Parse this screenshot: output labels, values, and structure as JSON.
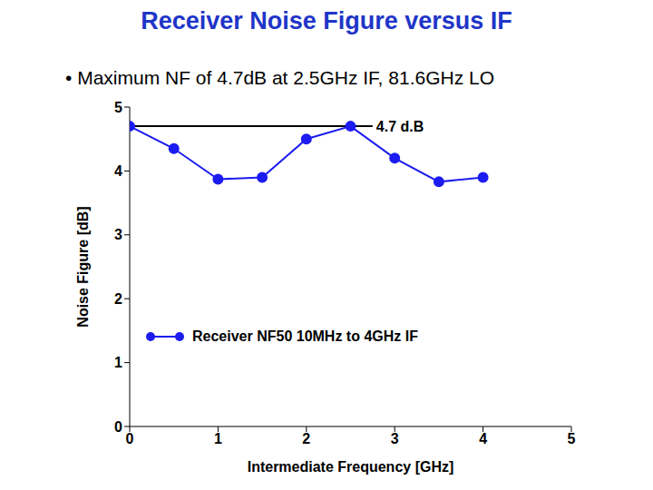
{
  "chart_data": {
    "type": "line",
    "title": "Receiver Noise Figure versus IF",
    "subtitle": "• Maximum NF of 4.7dB at 2.5GHz IF, 81.6GHz LO",
    "x_label": "Intermediate Frequency [GHz]",
    "y_label": "Noise Figure [dB]",
    "x": [
      0,
      0.5,
      1,
      1.5,
      2,
      2.5,
      3,
      3.5,
      4
    ],
    "series": [
      {
        "name": "Receiver NF50 10MHz to 4GHz IF",
        "color": "#1c1cf0",
        "marker": "circle",
        "values": [
          4.7,
          4.35,
          3.87,
          3.9,
          4.5,
          4.7,
          4.2,
          3.83,
          3.9
        ]
      }
    ],
    "xlim": [
      0,
      5
    ],
    "xticks": [
      0,
      1,
      2,
      3,
      4,
      5
    ],
    "ylim": [
      0,
      5
    ],
    "yticks": [
      0,
      1,
      2,
      3,
      4,
      5
    ],
    "grid": false,
    "legend": "lower left",
    "annotations": [
      {
        "text": "4.7 d.B",
        "y": 4.7,
        "x_start": 0,
        "x_end": 2.75
      }
    ]
  }
}
